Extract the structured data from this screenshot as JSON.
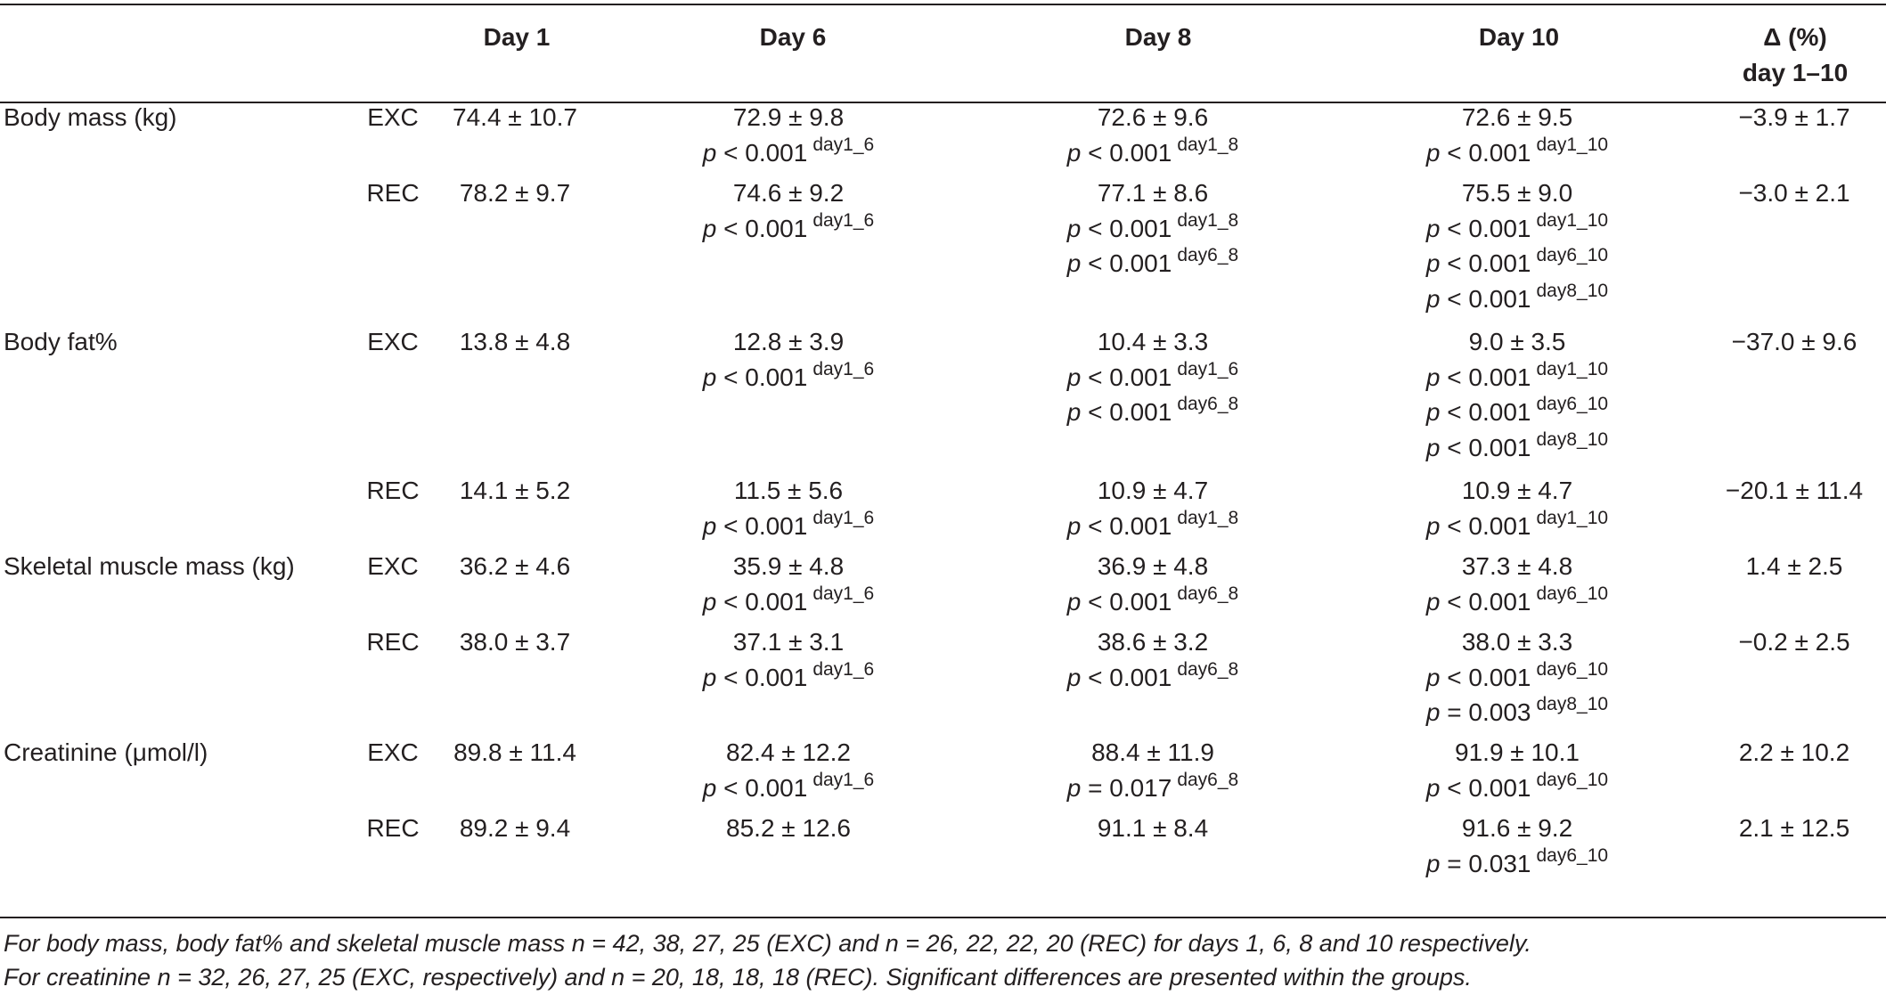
{
  "header": {
    "day1": "Day 1",
    "day6": "Day 6",
    "day8": "Day 8",
    "day10": "Day 10",
    "delta_line1": "Δ (%)",
    "delta_line2": "day 1–10"
  },
  "rows": [
    {
      "label": "Body mass (kg)",
      "group": "EXC",
      "day1": "74.4 ± 10.7",
      "day6": {
        "value": "72.9 ± 9.8",
        "p": [
          {
            "op": "< 0.001",
            "sup": "day1_6"
          }
        ]
      },
      "day8": {
        "value": "72.6 ± 9.6",
        "p": [
          {
            "op": "< 0.001",
            "sup": "day1_8"
          }
        ]
      },
      "day10": {
        "value": "72.6 ± 9.5",
        "p": [
          {
            "op": "< 0.001",
            "sup": "day1_10"
          }
        ]
      },
      "delta": "−3.9 ± 1.7"
    },
    {
      "label": "",
      "group": "REC",
      "day1": "78.2 ± 9.7",
      "day6": {
        "value": "74.6 ± 9.2",
        "p": [
          {
            "op": "< 0.001",
            "sup": "day1_6"
          }
        ]
      },
      "day8": {
        "value": "77.1 ± 8.6",
        "p": [
          {
            "op": "< 0.001",
            "sup": "day1_8"
          },
          {
            "op": "< 0.001",
            "sup": "day6_8"
          }
        ]
      },
      "day10": {
        "value": "75.5 ± 9.0",
        "p": [
          {
            "op": "< 0.001",
            "sup": "day1_10"
          },
          {
            "op": "< 0.001",
            "sup": "day6_10"
          },
          {
            "op": "< 0.001",
            "sup": "day8_10"
          }
        ]
      },
      "delta": "−3.0 ± 2.1"
    },
    {
      "label": "Body fat%",
      "group": "EXC",
      "day1": "13.8 ± 4.8",
      "day6": {
        "value": "12.8 ± 3.9",
        "p": [
          {
            "op": "< 0.001",
            "sup": "day1_6"
          }
        ]
      },
      "day8": {
        "value": "10.4 ± 3.3",
        "p": [
          {
            "op": "< 0.001",
            "sup": "day1_6"
          },
          {
            "op": "< 0.001",
            "sup": "day6_8"
          }
        ]
      },
      "day10": {
        "value": "9.0 ± 3.5",
        "p": [
          {
            "op": "< 0.001",
            "sup": "day1_10"
          },
          {
            "op": "< 0.001",
            "sup": "day6_10"
          },
          {
            "op": "< 0.001",
            "sup": "day8_10"
          }
        ]
      },
      "delta": "−37.0 ± 9.6"
    },
    {
      "label": "",
      "group": "REC",
      "day1": "14.1 ± 5.2",
      "day6": {
        "value": "11.5 ± 5.6",
        "p": [
          {
            "op": "< 0.001",
            "sup": "day1_6"
          }
        ]
      },
      "day8": {
        "value": "10.9 ± 4.7",
        "p": [
          {
            "op": "< 0.001",
            "sup": "day1_8"
          }
        ]
      },
      "day10": {
        "value": "10.9 ± 4.7",
        "p": [
          {
            "op": "< 0.001",
            "sup": "day1_10"
          }
        ]
      },
      "delta": "−20.1 ± 11.4"
    },
    {
      "label": "Skeletal muscle mass (kg)",
      "group": "EXC",
      "day1": "36.2 ± 4.6",
      "day6": {
        "value": "35.9 ± 4.8",
        "p": [
          {
            "op": "< 0.001",
            "sup": "day1_6"
          }
        ]
      },
      "day8": {
        "value": "36.9 ± 4.8",
        "p": [
          {
            "op": "< 0.001",
            "sup": "day6_8"
          }
        ]
      },
      "day10": {
        "value": "37.3 ± 4.8",
        "p": [
          {
            "op": "< 0.001",
            "sup": "day6_10"
          }
        ]
      },
      "delta": "1.4 ± 2.5"
    },
    {
      "label": "",
      "group": "REC",
      "day1": "38.0 ± 3.7",
      "day6": {
        "value": "37.1 ± 3.1",
        "p": [
          {
            "op": "< 0.001",
            "sup": "day1_6"
          }
        ]
      },
      "day8": {
        "value": "38.6 ± 3.2",
        "p": [
          {
            "op": "< 0.001",
            "sup": "day6_8"
          }
        ]
      },
      "day10": {
        "value": "38.0 ± 3.3",
        "p": [
          {
            "op": "< 0.001",
            "sup": "day6_10"
          },
          {
            "op": "= 0.003",
            "sup": "day8_10"
          }
        ]
      },
      "delta": "−0.2 ± 2.5"
    },
    {
      "label": "Creatinine (μmol/l)",
      "group": "EXC",
      "day1": "89.8 ± 11.4",
      "day6": {
        "value": "82.4 ± 12.2",
        "p": [
          {
            "op": "< 0.001",
            "sup": "day1_6"
          }
        ]
      },
      "day8": {
        "value": "88.4 ± 11.9",
        "p": [
          {
            "op": "= 0.017",
            "sup": "day6_8"
          }
        ]
      },
      "day10": {
        "value": "91.9 ± 10.1",
        "p": [
          {
            "op": "< 0.001",
            "sup": "day6_10"
          }
        ]
      },
      "delta": "2.2 ± 10.2"
    },
    {
      "label": "",
      "group": "REC",
      "day1": "89.2 ± 9.4",
      "day6": {
        "value": "85.2 ± 12.6",
        "p": []
      },
      "day8": {
        "value": "91.1 ± 8.4",
        "p": []
      },
      "day10": {
        "value": "91.6 ± 9.2",
        "p": [
          {
            "op": "= 0.031",
            "sup": "day6_10"
          }
        ]
      },
      "delta": "2.1 ± 12.5"
    }
  ],
  "p_symbol": "p",
  "footnotes": [
    "For body mass, body fat% and skeletal muscle mass n = 42, 38, 27, 25 (EXC) and n = 26, 22, 22, 20 (REC) for days 1, 6, 8 and 10 respectively.",
    "For creatinine n = 32, 26, 27, 25 (EXC, respectively) and n = 20, 18, 18, 18 (REC). Significant differences are presented within the groups."
  ]
}
